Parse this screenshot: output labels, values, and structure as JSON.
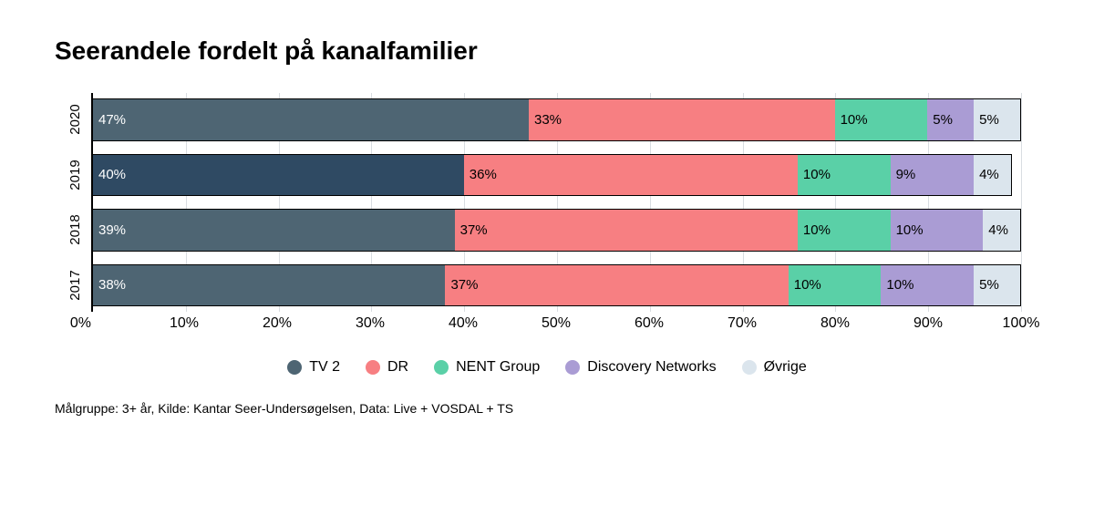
{
  "title": "Seerandele fordelt på kanalfamilier",
  "title_fontsize": 28,
  "chart": {
    "type": "stacked-bar-horizontal",
    "background_color": "#ffffff",
    "grid_color": "#d9dde1",
    "axis_color": "#000000",
    "xlim": [
      0,
      100
    ],
    "xtick_step": 10,
    "xticks": [
      "0%",
      "10%",
      "20%",
      "30%",
      "40%",
      "50%",
      "60%",
      "70%",
      "80%",
      "90%",
      "100%"
    ],
    "categories": [
      "2020",
      "2019",
      "2018",
      "2017"
    ],
    "series": [
      {
        "name": "TV 2",
        "color": "#4e6573",
        "label_color": "#ffffff"
      },
      {
        "name": "DR",
        "color": "#f77f82",
        "label_color": "#000000"
      },
      {
        "name": "NENT Group",
        "color": "#5ad0a7",
        "label_color": "#000000"
      },
      {
        "name": "Discovery Networks",
        "color": "#aa9cd4",
        "label_color": "#000000"
      },
      {
        "name": "Øvrige",
        "color": "#dbe5ed",
        "label_color": "#000000"
      }
    ],
    "rows": [
      {
        "label": "2020",
        "values": [
          47,
          33,
          10,
          5,
          5
        ],
        "color_overrides": {}
      },
      {
        "label": "2019",
        "values": [
          40,
          36,
          10,
          9,
          4
        ],
        "color_overrides": {
          "0": "#2f4a63"
        }
      },
      {
        "label": "2018",
        "values": [
          39,
          37,
          10,
          10,
          4
        ],
        "color_overrides": {}
      },
      {
        "label": "2017",
        "values": [
          38,
          37,
          10,
          10,
          5
        ],
        "color_overrides": {}
      }
    ],
    "value_suffix": "%",
    "label_fontsize": 15,
    "tick_fontsize": 16
  },
  "legend_fontsize": 16,
  "footnote": "Målgruppe: 3+ år, Kilde: Kantar Seer-Undersøgelsen, Data: Live + VOSDAL + TS",
  "footnote_fontsize": 14
}
